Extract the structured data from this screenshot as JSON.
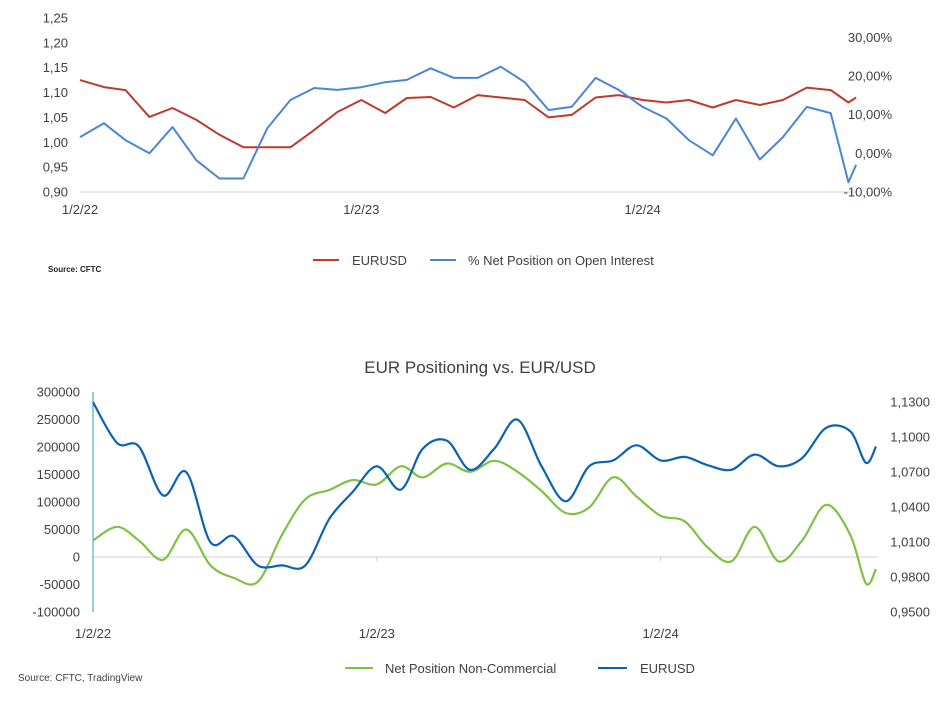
{
  "chart_data": [
    {
      "type": "line",
      "title": "",
      "source": "Source: CFTC",
      "legend_position": "bottom",
      "grid": false,
      "x_tick_labels": [
        {
          "date": "2022-01-02",
          "label": "1/2/22"
        },
        {
          "date": "2023-01-02",
          "label": "1/2/23"
        },
        {
          "date": "2024-01-02",
          "label": "1/2/24"
        }
      ],
      "y_left": {
        "range": [
          0.9,
          1.25
        ],
        "ticks": [
          0.9,
          0.95,
          1.0,
          1.05,
          1.1,
          1.15,
          1.2,
          1.25
        ],
        "tick_labels": [
          "0,90",
          "0,95",
          "1,00",
          "1,05",
          "1,10",
          "1,15",
          "1,20",
          "1,25"
        ]
      },
      "y_right": {
        "range": [
          -10,
          35
        ],
        "ticks": [
          -10,
          0,
          10,
          20,
          30
        ],
        "tick_labels": [
          "-10,00%",
          "0,00%",
          "10,00%",
          "20,00%",
          "30,00%"
        ]
      },
      "x": [
        "2022-01-02",
        "2022-02-02",
        "2022-03-02",
        "2022-04-02",
        "2022-05-02",
        "2022-06-02",
        "2022-07-02",
        "2022-08-02",
        "2022-09-02",
        "2022-10-02",
        "2022-11-02",
        "2022-12-02",
        "2023-01-02",
        "2023-02-02",
        "2023-03-02",
        "2023-04-02",
        "2023-05-02",
        "2023-06-02",
        "2023-07-02",
        "2023-08-02",
        "2023-09-02",
        "2023-10-02",
        "2023-11-02",
        "2023-12-02",
        "2024-01-02",
        "2024-02-02",
        "2024-03-02",
        "2024-04-02",
        "2024-05-02",
        "2024-06-02",
        "2024-07-02",
        "2024-08-02",
        "2024-09-02",
        "2024-09-25",
        "2024-10-05"
      ],
      "series": [
        {
          "name": "EURUSD",
          "axis": "left",
          "color": "#C0392B",
          "values": [
            1.125,
            1.111,
            1.105,
            1.051,
            1.069,
            1.045,
            1.015,
            0.99,
            0.99,
            0.99,
            1.025,
            1.061,
            1.085,
            1.059,
            1.089,
            1.091,
            1.07,
            1.095,
            1.09,
            1.085,
            1.05,
            1.055,
            1.09,
            1.095,
            1.085,
            1.08,
            1.085,
            1.07,
            1.085,
            1.075,
            1.085,
            1.11,
            1.105,
            1.08,
            1.09
          ]
        },
        {
          "name": "% Net Position on Open Interest",
          "axis": "right",
          "color": "#4A86D4",
          "values": [
            4.2,
            7.8,
            3.4,
            0,
            6.8,
            -1.8,
            -6.5,
            -6.5,
            6.5,
            13.8,
            16.9,
            16.4,
            17.1,
            18.4,
            19,
            22,
            19.5,
            19.5,
            22.4,
            18.4,
            11.2,
            12,
            19.5,
            16.4,
            12,
            9,
            3.4,
            -0.5,
            9,
            -1.6,
            4.2,
            12,
            10.4,
            -7.5,
            -3
          ]
        }
      ]
    },
    {
      "type": "line",
      "title": "EUR Positioning vs. EUR/USD",
      "source": "Source: CFTC, TradingView",
      "legend_position": "bottom",
      "grid": false,
      "x_tick_labels": [
        {
          "date": "2022-01-02",
          "label": "1/2/22"
        },
        {
          "date": "2023-01-02",
          "label": "1/2/23"
        },
        {
          "date": "2024-01-02",
          "label": "1/2/24"
        }
      ],
      "y_left": {
        "range": [
          -100000,
          300000
        ],
        "ticks": [
          -100000,
          -50000,
          0,
          50000,
          100000,
          150000,
          200000,
          250000,
          300000
        ],
        "tick_labels": [
          "-100000",
          "-50000",
          "0",
          "50000",
          "100000",
          "150000",
          "200000",
          "250000",
          "300000"
        ]
      },
      "y_right": {
        "range": [
          0.95,
          1.14
        ],
        "ticks": [
          0.95,
          0.98,
          1.01,
          1.04,
          1.07,
          1.1,
          1.13
        ],
        "tick_labels": [
          "0,9500",
          "0,9800",
          "1,0100",
          "1,0400",
          "1,0700",
          "1,1000",
          "1,1300"
        ]
      },
      "x": [
        "2022-01-02",
        "2022-02-02",
        "2022-03-02",
        "2022-04-02",
        "2022-05-02",
        "2022-06-02",
        "2022-07-02",
        "2022-08-02",
        "2022-09-02",
        "2022-10-02",
        "2022-11-02",
        "2022-12-02",
        "2023-01-02",
        "2023-02-02",
        "2023-03-02",
        "2023-04-02",
        "2023-05-02",
        "2023-06-02",
        "2023-07-02",
        "2023-08-02",
        "2023-09-02",
        "2023-10-02",
        "2023-11-02",
        "2023-12-02",
        "2024-01-02",
        "2024-02-02",
        "2024-03-02",
        "2024-04-02",
        "2024-05-02",
        "2024-06-02",
        "2024-07-02",
        "2024-08-02",
        "2024-09-02",
        "2024-09-22",
        "2024-10-05"
      ],
      "series": [
        {
          "name": "Net Position Non-Commercial",
          "axis": "left",
          "color": "#7DC242",
          "values": [
            30000,
            55000,
            30000,
            -5000,
            50000,
            -15000,
            -38000,
            -45000,
            40000,
            105000,
            122000,
            140000,
            132000,
            165000,
            145000,
            170000,
            155000,
            175000,
            155000,
            120000,
            80000,
            90000,
            145000,
            110000,
            75000,
            65000,
            18000,
            -8000,
            55000,
            -8000,
            30000,
            95000,
            40000,
            -48000,
            -22000
          ]
        },
        {
          "name": "EURUSD",
          "axis": "right",
          "color": "#0B62B5",
          "values": [
            1.13,
            1.095,
            1.092,
            1.05,
            1.07,
            1.01,
            1.015,
            0.99,
            0.99,
            0.99,
            1.03,
            1.053,
            1.075,
            1.055,
            1.09,
            1.097,
            1.072,
            1.09,
            1.115,
            1.075,
            1.045,
            1.075,
            1.08,
            1.093,
            1.08,
            1.083,
            1.076,
            1.072,
            1.085,
            1.075,
            1.082,
            1.108,
            1.105,
            1.078,
            1.092
          ]
        }
      ]
    }
  ]
}
